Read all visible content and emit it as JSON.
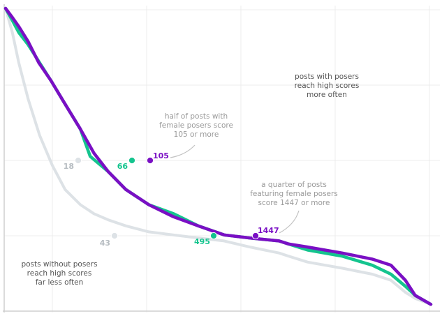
{
  "chart_data": {
    "type": "line",
    "title": "",
    "xlabel": "",
    "ylabel": "",
    "grid": true,
    "series": [
      {
        "color": "#7a0fc4",
        "points": [
          [
            0,
            100
          ],
          [
            1.6,
            97
          ],
          [
            3.1,
            94
          ],
          [
            5.3,
            89
          ],
          [
            7.8,
            82
          ],
          [
            10.7,
            76
          ],
          [
            13.7,
            69
          ],
          [
            17.6,
            60
          ],
          [
            20.8,
            52
          ],
          [
            24.1,
            46
          ],
          [
            28.3,
            40
          ],
          [
            33.7,
            35
          ],
          [
            39.5,
            31
          ],
          [
            45.3,
            28
          ],
          [
            51.4,
            25
          ],
          [
            57.4,
            24
          ],
          [
            64.3,
            23
          ],
          [
            66.5,
            22
          ],
          [
            71,
            21
          ],
          [
            79.1,
            19
          ],
          [
            86.2,
            17
          ],
          [
            90.6,
            15
          ],
          [
            94,
            10
          ],
          [
            96.3,
            5
          ],
          [
            100,
            2
          ]
        ]
      },
      {
        "color": "#14c48e",
        "points": [
          [
            0,
            100
          ],
          [
            1.6,
            96
          ],
          [
            3.1,
            92
          ],
          [
            5.3,
            88
          ],
          [
            8,
            82
          ],
          [
            10.7,
            76
          ],
          [
            13.7,
            69
          ],
          [
            17.6,
            60
          ],
          [
            19.9,
            51
          ],
          [
            24.1,
            46
          ],
          [
            28.3,
            40
          ],
          [
            33.7,
            35
          ],
          [
            39.5,
            32
          ],
          [
            45.3,
            28
          ],
          [
            51.4,
            25
          ],
          [
            57.4,
            24
          ],
          [
            64.3,
            23
          ],
          [
            66.5,
            22
          ],
          [
            71,
            20
          ],
          [
            79.1,
            18
          ],
          [
            86.2,
            15
          ],
          [
            90.6,
            12
          ],
          [
            94,
            8
          ],
          [
            96.3,
            5
          ],
          [
            100,
            2
          ]
        ]
      },
      {
        "color": "#dde2e6",
        "points": [
          [
            0,
            100
          ],
          [
            1.6,
            92
          ],
          [
            3.1,
            82
          ],
          [
            5.3,
            70
          ],
          [
            8,
            58
          ],
          [
            11,
            48
          ],
          [
            14,
            40
          ],
          [
            17.6,
            35
          ],
          [
            20.8,
            32
          ],
          [
            24.1,
            30
          ],
          [
            28.3,
            28
          ],
          [
            33.7,
            26
          ],
          [
            39.5,
            25
          ],
          [
            45.3,
            24
          ],
          [
            51.4,
            23
          ],
          [
            57.4,
            21
          ],
          [
            64.3,
            19
          ],
          [
            66.5,
            18
          ],
          [
            71,
            16
          ],
          [
            79.1,
            14
          ],
          [
            86.2,
            12
          ],
          [
            90.6,
            10
          ],
          [
            94,
            6
          ],
          [
            96.3,
            4
          ],
          [
            100,
            2
          ]
        ]
      }
    ],
    "markers": [
      {
        "series": 0,
        "label": "105"
      },
      {
        "series": 0,
        "label": "1447"
      },
      {
        "series": 1,
        "label": "66"
      },
      {
        "series": 1,
        "label": "495"
      },
      {
        "series": 2,
        "label": "18"
      },
      {
        "series": 2,
        "label": "43"
      }
    ],
    "annotations": [
      {
        "lines": [
          "posts with posers",
          "reach high scores",
          "more often"
        ]
      },
      {
        "lines": [
          "half of posts with",
          "female posers score",
          "105 or more"
        ]
      },
      {
        "lines": [
          "a quarter of posts",
          "featuring female posers",
          "score 1447 or more"
        ]
      },
      {
        "lines": [
          "posts without posers",
          "reach high scores",
          "far less often"
        ]
      }
    ]
  }
}
